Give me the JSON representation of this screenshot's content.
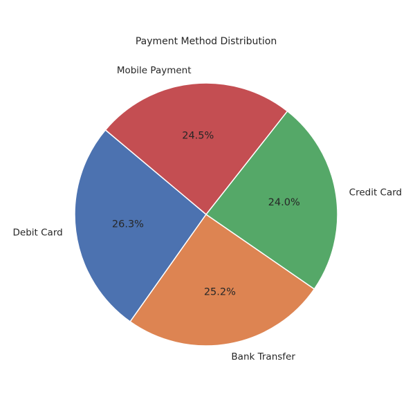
{
  "chart_data": {
    "type": "pie",
    "title": "Payment Method Distribution",
    "start_angle_deg": 140,
    "direction": "counterclockwise",
    "slices": [
      {
        "label": "Debit Card",
        "value": 26.3,
        "pct_label": "26.3%",
        "color": "#4c72b0"
      },
      {
        "label": "Bank Transfer",
        "value": 25.2,
        "pct_label": "25.2%",
        "color": "#dd8452"
      },
      {
        "label": "Credit Card",
        "value": 24.0,
        "pct_label": "24.0%",
        "color": "#55a868"
      },
      {
        "label": "Mobile Payment",
        "value": 24.5,
        "pct_label": "24.5%",
        "color": "#c44e52"
      }
    ]
  }
}
